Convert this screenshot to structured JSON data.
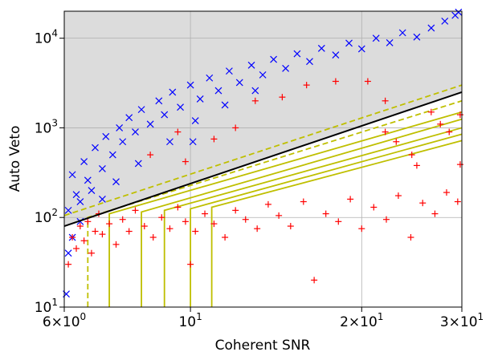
{
  "chart_data": {
    "type": "scatter",
    "title": "",
    "xlabel": "Coherent SNR",
    "ylabel": "Auto Veto",
    "xscale": "log",
    "yscale": "log",
    "xlim": [
      6,
      30
    ],
    "ylim": [
      10,
      20000
    ],
    "grid": true,
    "legend": "none",
    "background_region_color": "#dcdcdc",
    "x_ticks": [
      {
        "value": 6,
        "base": "6×10",
        "exp": "0"
      },
      {
        "value": 10,
        "base": "10",
        "exp": "1"
      },
      {
        "value": 20,
        "base": "2×10",
        "exp": "1"
      },
      {
        "value": 30,
        "base": "3×10",
        "exp": "1"
      }
    ],
    "y_ticks": [
      {
        "value": 10,
        "base": "10",
        "exp": "1"
      },
      {
        "value": 100,
        "base": "10",
        "exp": "2"
      },
      {
        "value": 1000,
        "base": "10",
        "exp": "3"
      },
      {
        "value": 10000,
        "base": "10",
        "exp": "4"
      }
    ],
    "series": [
      {
        "marker": "x",
        "color": "#0000ff",
        "description_points_sampled": true,
        "points": [
          [
            6.05,
            14
          ],
          [
            6.1,
            40
          ],
          [
            6.1,
            120
          ],
          [
            6.2,
            300
          ],
          [
            6.3,
            180
          ],
          [
            6.4,
            90
          ],
          [
            6.5,
            420
          ],
          [
            6.6,
            260
          ],
          [
            6.8,
            600
          ],
          [
            7.0,
            350
          ],
          [
            7.1,
            800
          ],
          [
            7.3,
            500
          ],
          [
            7.5,
            1000
          ],
          [
            7.6,
            700
          ],
          [
            7.8,
            1300
          ],
          [
            8.0,
            900
          ],
          [
            8.2,
            1600
          ],
          [
            8.5,
            1100
          ],
          [
            8.8,
            2000
          ],
          [
            9.0,
            1400
          ],
          [
            9.3,
            2500
          ],
          [
            9.6,
            1700
          ],
          [
            10,
            3000
          ],
          [
            10.4,
            2100
          ],
          [
            10.8,
            3600
          ],
          [
            11.2,
            2600
          ],
          [
            11.7,
            4300
          ],
          [
            12.2,
            3200
          ],
          [
            12.8,
            5000
          ],
          [
            13.4,
            3900
          ],
          [
            14.0,
            5800
          ],
          [
            14.7,
            4600
          ],
          [
            15.4,
            6700
          ],
          [
            16.2,
            5500
          ],
          [
            17.0,
            7700
          ],
          [
            18.0,
            6500
          ],
          [
            19.0,
            8800
          ],
          [
            20.0,
            7600
          ],
          [
            21.2,
            10000
          ],
          [
            22.4,
            8900
          ],
          [
            23.6,
            11500
          ],
          [
            25.0,
            10300
          ],
          [
            26.5,
            13000
          ],
          [
            28.0,
            15500
          ],
          [
            29.2,
            18000
          ],
          [
            29.6,
            19500
          ],
          [
            6.2,
            60
          ],
          [
            6.4,
            150
          ],
          [
            6.7,
            200
          ],
          [
            7.0,
            160
          ],
          [
            7.4,
            250
          ],
          [
            8.1,
            400
          ],
          [
            9.2,
            700
          ],
          [
            10.2,
            1200
          ],
          [
            11.5,
            1800
          ],
          [
            13.0,
            2600
          ],
          [
            10.1,
            700
          ]
        ]
      },
      {
        "marker": "+",
        "color": "#ff0000",
        "description_points_sampled": true,
        "points": [
          [
            6.1,
            30
          ],
          [
            6.2,
            60
          ],
          [
            6.3,
            45
          ],
          [
            6.4,
            80
          ],
          [
            6.5,
            55
          ],
          [
            6.6,
            90
          ],
          [
            6.7,
            40
          ],
          [
            6.8,
            70
          ],
          [
            6.9,
            110
          ],
          [
            7.0,
            65
          ],
          [
            7.2,
            85
          ],
          [
            7.4,
            50
          ],
          [
            7.6,
            95
          ],
          [
            7.8,
            70
          ],
          [
            8.0,
            120
          ],
          [
            8.3,
            80
          ],
          [
            8.6,
            60
          ],
          [
            8.9,
            100
          ],
          [
            9.2,
            75
          ],
          [
            9.5,
            130
          ],
          [
            9.8,
            90
          ],
          [
            10.2,
            70
          ],
          [
            10.6,
            110
          ],
          [
            11.0,
            85
          ],
          [
            11.5,
            60
          ],
          [
            12.0,
            120
          ],
          [
            12.5,
            95
          ],
          [
            13.1,
            75
          ],
          [
            13.7,
            140
          ],
          [
            14.3,
            105
          ],
          [
            15.0,
            80
          ],
          [
            15.8,
            150
          ],
          [
            16.5,
            20
          ],
          [
            17.3,
            110
          ],
          [
            18.2,
            90
          ],
          [
            19.1,
            160
          ],
          [
            20.0,
            75
          ],
          [
            21.0,
            130
          ],
          [
            22.1,
            95
          ],
          [
            23.2,
            175
          ],
          [
            24.4,
            60
          ],
          [
            25.6,
            145
          ],
          [
            26.9,
            110
          ],
          [
            28.2,
            190
          ],
          [
            29.5,
            150
          ],
          [
            29.8,
            390
          ],
          [
            13.0,
            2000
          ],
          [
            14.5,
            2200
          ],
          [
            16.0,
            3000
          ],
          [
            18.0,
            3300
          ],
          [
            20.5,
            3300
          ],
          [
            22.0,
            2000
          ],
          [
            26.5,
            1500
          ],
          [
            27.5,
            1100
          ],
          [
            28.5,
            900
          ],
          [
            29.8,
            1400
          ],
          [
            22.0,
            900
          ],
          [
            23.0,
            700
          ],
          [
            24.5,
            500
          ],
          [
            25.0,
            380
          ],
          [
            9.5,
            900
          ],
          [
            12.0,
            1000
          ],
          [
            11.0,
            750
          ],
          [
            9.8,
            420
          ],
          [
            8.5,
            500
          ],
          [
            10.0,
            30
          ]
        ]
      }
    ],
    "lines": [
      {
        "style": "solid",
        "color": "#000000",
        "points": [
          [
            6,
            80
          ],
          [
            30,
            2500
          ]
        ]
      },
      {
        "style": "dashed",
        "color": "#bfbf00",
        "points": [
          [
            6,
            105
          ],
          [
            30,
            3000
          ]
        ]
      },
      {
        "style": "dashed",
        "color": "#bfbf00",
        "points": [
          [
            6.6,
            10
          ],
          [
            6.6,
            100
          ],
          [
            30,
            2000
          ]
        ]
      },
      {
        "style": "solid",
        "color": "#bfbf00",
        "points": [
          [
            7.2,
            10
          ],
          [
            7.2,
            110
          ],
          [
            30,
            1500
          ]
        ]
      },
      {
        "style": "solid",
        "color": "#bfbf00",
        "points": [
          [
            8.2,
            10
          ],
          [
            8.2,
            115
          ],
          [
            30,
            1250
          ]
        ]
      },
      {
        "style": "solid",
        "color": "#bfbf00",
        "points": [
          [
            9.0,
            10
          ],
          [
            9.0,
            120
          ],
          [
            30,
            1000
          ]
        ]
      },
      {
        "style": "solid",
        "color": "#bfbf00",
        "points": [
          [
            10.0,
            10
          ],
          [
            10.0,
            125
          ],
          [
            30,
            850
          ]
        ]
      },
      {
        "style": "solid",
        "color": "#bfbf00",
        "points": [
          [
            10.9,
            10
          ],
          [
            10.9,
            130
          ],
          [
            30,
            720
          ]
        ]
      }
    ]
  }
}
